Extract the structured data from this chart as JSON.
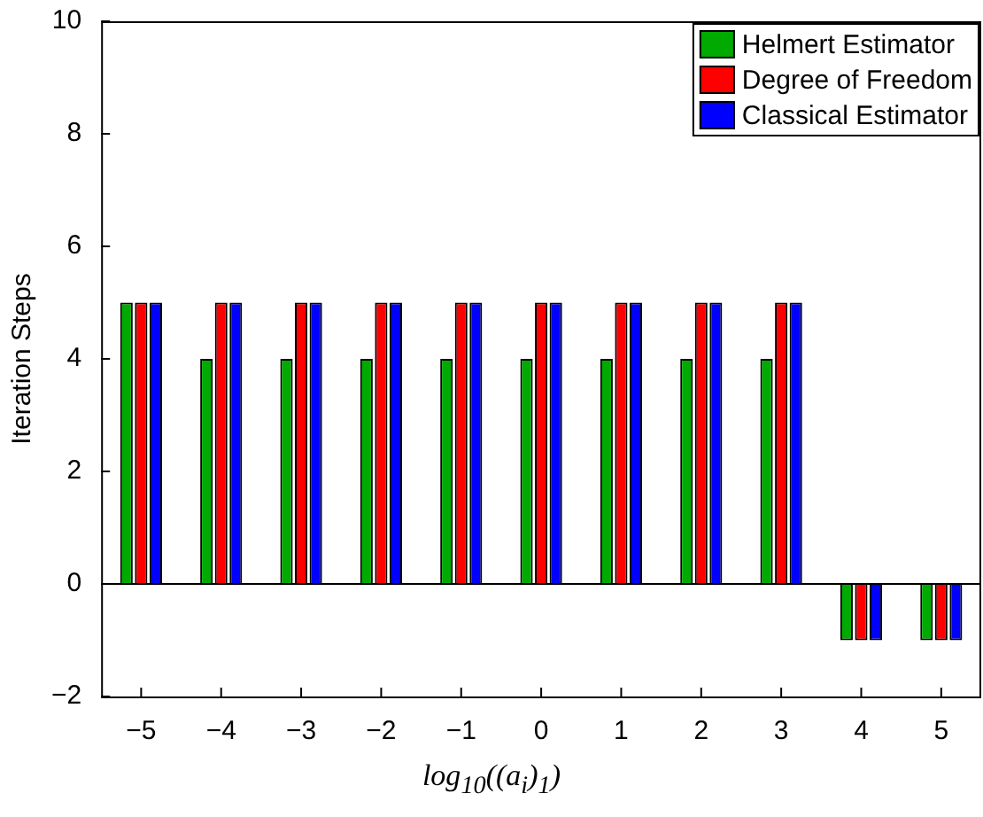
{
  "chart_data": {
    "type": "bar",
    "xlabel": "log$_{10}$((a$_{i}$)$_{1}$)",
    "ylabel": "Iteration Steps",
    "categories": [
      "−5",
      "−4",
      "−3",
      "−2",
      "−1",
      "0",
      "1",
      "2",
      "3",
      "4",
      "5"
    ],
    "series": [
      {
        "name": "Helmert Estimator",
        "color": "#00aa00",
        "values": [
          5,
          4,
          4,
          4,
          4,
          4,
          4,
          4,
          4,
          -1,
          -1
        ]
      },
      {
        "name": "Degree of Freedom",
        "color": "#ff0000",
        "values": [
          5,
          5,
          5,
          5,
          5,
          5,
          5,
          5,
          5,
          -1,
          -1
        ]
      },
      {
        "name": "Classical Estimator",
        "color": "#0000ff",
        "values": [
          5,
          5,
          5,
          5,
          5,
          5,
          5,
          5,
          5,
          -1,
          -1
        ]
      }
    ],
    "ylim": [
      -2,
      10
    ],
    "yticks": [
      {
        "value": -2,
        "label": "−2"
      },
      0,
      2,
      4,
      6,
      8,
      10
    ],
    "grid": false,
    "legend": "top right",
    "ref_lines": [
      {
        "axis": "y",
        "value": 0,
        "color": "#000000"
      }
    ]
  }
}
